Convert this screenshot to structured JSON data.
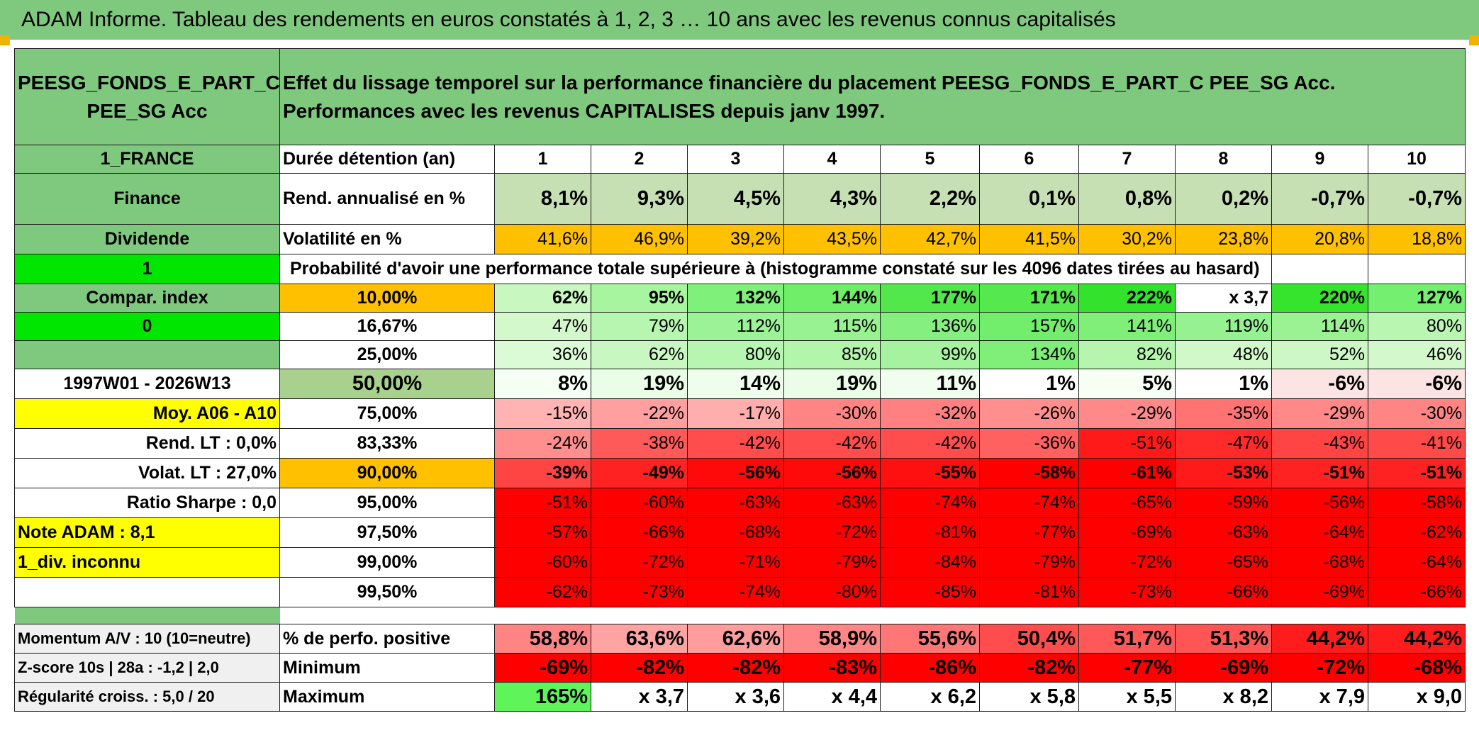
{
  "title": "ADAM Informe. Tableau des rendements en euros constatés à 1, 2, 3 … 10 ans avec les revenus connus capitalisés",
  "fund": {
    "name_line1": "PEESG_FONDS_E_PART_C",
    "name_line2": "PEE_SG Acc"
  },
  "header_text": "Effet du lissage temporel sur la performance financière du placement PEESG_FONDS_E_PART_C PEE_SG Acc. Performances avec les revenus CAPITALISES depuis janv 1997.",
  "left": {
    "country": "1_FRANCE",
    "sector": "Finance",
    "dividend": "Dividende",
    "one": "1",
    "compar": "Compar. index",
    "zero": "0",
    "period": "1997W01 - 2026W13",
    "moy": "Moy. A06 - A10",
    "rend_lt": "Rend. LT :    0,0%",
    "volat_lt": "Volat. LT :    27,0%",
    "sharpe": "Ratio Sharpe :    0,0",
    "note": "Note ADAM : 8,1",
    "div": "1_div. inconnu",
    "momentum": "Momentum A/V : 10 (10=neutre)",
    "zscore": "Z-score 10s | 28a : -1,2 | 2,0",
    "regularite": "Régularité croiss. : 5,0 / 20"
  },
  "labels": {
    "duree": "Durée détention (an)",
    "rend": "Rend. annualisé en %",
    "volat": "Volatilité en %",
    "proba": "Probabilité d'avoir une performance totale supérieure à (histogramme constaté sur les 4096 dates tirées au hasard)",
    "pos": "% de perfo. positive",
    "min": "Minimum",
    "max": "Maximum"
  },
  "years": [
    "1",
    "2",
    "3",
    "4",
    "5",
    "6",
    "7",
    "8",
    "9",
    "10"
  ],
  "rend": [
    "8,1%",
    "9,3%",
    "4,5%",
    "4,3%",
    "2,2%",
    "0,1%",
    "0,8%",
    "0,2%",
    "-0,7%",
    "-0,7%"
  ],
  "volat": [
    "41,6%",
    "46,9%",
    "39,2%",
    "43,5%",
    "42,7%",
    "41,5%",
    "30,2%",
    "23,8%",
    "20,8%",
    "18,8%"
  ],
  "prob_rows": [
    {
      "label": "10,00%",
      "values": [
        "62%",
        "95%",
        "132%",
        "144%",
        "177%",
        "171%",
        "222%",
        "x 3,7",
        "220%",
        "127%"
      ]
    },
    {
      "label": "16,67%",
      "values": [
        "47%",
        "79%",
        "112%",
        "115%",
        "136%",
        "157%",
        "141%",
        "119%",
        "114%",
        "80%"
      ]
    },
    {
      "label": "25,00%",
      "values": [
        "36%",
        "62%",
        "80%",
        "85%",
        "99%",
        "134%",
        "82%",
        "48%",
        "52%",
        "46%"
      ]
    },
    {
      "label": "50,00%",
      "values": [
        "8%",
        "19%",
        "14%",
        "19%",
        "11%",
        "1%",
        "5%",
        "1%",
        "-6%",
        "-6%"
      ]
    },
    {
      "label": "75,00%",
      "values": [
        "-15%",
        "-22%",
        "-17%",
        "-30%",
        "-32%",
        "-26%",
        "-29%",
        "-35%",
        "-29%",
        "-30%"
      ]
    },
    {
      "label": "83,33%",
      "values": [
        "-24%",
        "-38%",
        "-42%",
        "-42%",
        "-42%",
        "-36%",
        "-51%",
        "-47%",
        "-43%",
        "-41%"
      ]
    },
    {
      "label": "90,00%",
      "values": [
        "-39%",
        "-49%",
        "-56%",
        "-56%",
        "-55%",
        "-58%",
        "-61%",
        "-53%",
        "-51%",
        "-51%"
      ]
    },
    {
      "label": "95,00%",
      "values": [
        "-51%",
        "-60%",
        "-63%",
        "-63%",
        "-74%",
        "-74%",
        "-65%",
        "-59%",
        "-56%",
        "-58%"
      ]
    },
    {
      "label": "97,50%",
      "values": [
        "-57%",
        "-66%",
        "-68%",
        "-72%",
        "-81%",
        "-77%",
        "-69%",
        "-63%",
        "-64%",
        "-62%"
      ]
    },
    {
      "label": "99,00%",
      "values": [
        "-60%",
        "-72%",
        "-71%",
        "-79%",
        "-84%",
        "-79%",
        "-72%",
        "-65%",
        "-68%",
        "-64%"
      ]
    },
    {
      "label": "99,50%",
      "values": [
        "-62%",
        "-73%",
        "-74%",
        "-80%",
        "-85%",
        "-81%",
        "-73%",
        "-66%",
        "-69%",
        "-66%"
      ]
    }
  ],
  "pos": [
    "58,8%",
    "63,6%",
    "62,6%",
    "58,9%",
    "55,6%",
    "50,4%",
    "51,7%",
    "51,3%",
    "44,2%",
    "44,2%"
  ],
  "min": [
    "-69%",
    "-82%",
    "-82%",
    "-83%",
    "-86%",
    "-82%",
    "-77%",
    "-69%",
    "-72%",
    "-68%"
  ],
  "max": [
    "165%",
    "x 3,7",
    "x 3,6",
    "x 4,4",
    "x 6,2",
    "x 5,8",
    "x 5,5",
    "x 8,2",
    "x 7,9",
    "x 9,0"
  ],
  "colors": {
    "header_green": "#7fc97f",
    "lime": "#00e600",
    "yellow": "#ffff00",
    "orange": "#ffc000",
    "red": "#ff0000",
    "text_red": "#d40000"
  },
  "cell_colors": {
    "rend": [
      "#c6e0b4",
      "#c6e0b4",
      "#c6e0b4",
      "#c6e0b4",
      "#c6e0b4",
      "#c6e0b4",
      "#c6e0b4",
      "#c6e0b4",
      "#c6e0b4",
      "#c6e0b4"
    ],
    "volat": [
      "#ffc000",
      "#ffc000",
      "#ffc000",
      "#ffc000",
      "#ffc000",
      "#ffc000",
      "#ffc000",
      "#ffc000",
      "#ffc000",
      "#ffc000"
    ],
    "prob": [
      [
        "#c8f7c0",
        "#a8f5a0",
        "#7ff07a",
        "#6fee69",
        "#52e84b",
        "#55e94e",
        "#33e22a",
        "#ffffff",
        "#36e32d",
        "#74ef6f"
      ],
      [
        "#d2f8cb",
        "#b7f6b0",
        "#9cf296",
        "#99f292",
        "#85f07f",
        "#72ee6c",
        "#80ef7a",
        "#96f190",
        "#9af293",
        "#b8f6b1"
      ],
      [
        "#dbfad6",
        "#c8f7c1",
        "#b7f6b0",
        "#b4f5ac",
        "#a6f39f",
        "#7fef79",
        "#b5f5ae",
        "#d0f8c9",
        "#cdf8c6",
        "#d2f8cb"
      ],
      [
        "#f6fff4",
        "#eafde6",
        "#effdec",
        "#eafde6",
        "#f1fdee",
        "#ffffff",
        "#f7fff5",
        "#ffffff",
        "#fde4e4",
        "#fde4e4"
      ],
      [
        "#ffb3b3",
        "#ff9f9f",
        "#ffaeae",
        "#ff8585",
        "#ff8080",
        "#ff8f8f",
        "#ff8888",
        "#ff7373",
        "#ff8888",
        "#ff8585"
      ],
      [
        "#ff8f8f",
        "#ff5a5a",
        "#ff4d4d",
        "#ff4d4d",
        "#ff4d4d",
        "#ff6161",
        "#ff1a1a",
        "#ff2b2b",
        "#ff4444",
        "#ff4a4a"
      ],
      [
        "#ff4444",
        "#ff2222",
        "#ff0a0a",
        "#ff0a0a",
        "#ff1010",
        "#ff0000",
        "#ff0000",
        "#ff1a1a",
        "#ff2222",
        "#ff2222"
      ],
      [
        "#ff0000",
        "#ff0000",
        "#ff0000",
        "#ff0000",
        "#ff0000",
        "#ff0000",
        "#ff0000",
        "#ff0000",
        "#ff0000",
        "#ff0000"
      ],
      [
        "#ff0000",
        "#ff0000",
        "#ff0000",
        "#ff0000",
        "#ff0000",
        "#ff0000",
        "#ff0000",
        "#ff0000",
        "#ff0000",
        "#ff0000"
      ],
      [
        "#ff0000",
        "#ff0000",
        "#ff0000",
        "#ff0000",
        "#ff0000",
        "#ff0000",
        "#ff0000",
        "#ff0000",
        "#ff0000",
        "#ff0000"
      ],
      [
        "#ff0000",
        "#ff0000",
        "#ff0000",
        "#ff0000",
        "#ff0000",
        "#ff0000",
        "#ff0000",
        "#ff0000",
        "#ff0000",
        "#ff0000"
      ]
    ],
    "pos": [
      "#ff8585",
      "#ffa3a3",
      "#ff9c9c",
      "#ff8686",
      "#ff7676",
      "#ff4d4d",
      "#ff5858",
      "#ff5555",
      "#ff1c1c",
      "#ff1c1c"
    ],
    "min": [
      "#ff0000",
      "#ff0000",
      "#ff0000",
      "#ff0000",
      "#ff0000",
      "#ff0000",
      "#ff0000",
      "#ff0000",
      "#ff0000",
      "#ff0000"
    ],
    "max": [
      "#5ff55a",
      "#ffffff",
      "#ffffff",
      "#ffffff",
      "#ffffff",
      "#ffffff",
      "#ffffff",
      "#ffffff",
      "#ffffff",
      "#ffffff"
    ]
  }
}
